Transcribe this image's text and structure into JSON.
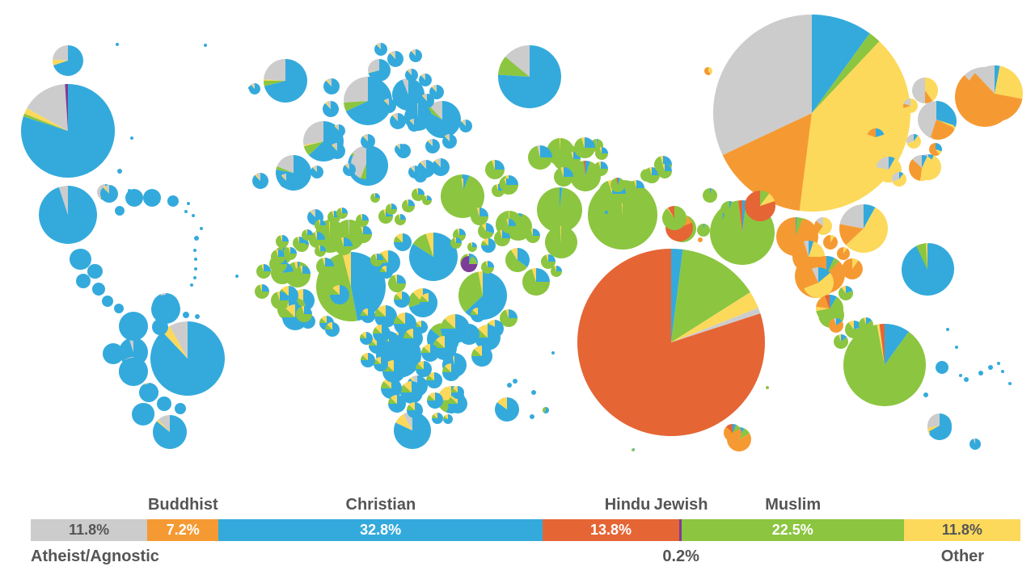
{
  "chart_data": {
    "type": "pie",
    "subtype": "world-map-of-country-pies-with-stacked-summary-bar",
    "colors": {
      "Atheist/Agnostic": "#cccccc",
      "Buddhist": "#f59a33",
      "Christian": "#34aadc",
      "Hindu": "#e56535",
      "Jewish": "#7d3c98",
      "Muslim": "#8cc540",
      "Other": "#fcd95b"
    },
    "summary": {
      "categories": [
        "Atheist/Agnostic",
        "Buddhist",
        "Christian",
        "Hindu",
        "Jewish",
        "Muslim",
        "Other"
      ],
      "values": [
        11.8,
        7.2,
        32.8,
        13.8,
        0.2,
        22.5,
        11.8
      ],
      "labels": [
        "11.8%",
        "7.2%",
        "32.8%",
        "13.8%",
        "0.2%",
        "22.5%",
        "11.8%"
      ],
      "label_position": [
        "bottom",
        "top",
        "top",
        "top",
        "top",
        "top",
        "bottom"
      ]
    },
    "legend": "labels above and below stacked bar"
  }
}
